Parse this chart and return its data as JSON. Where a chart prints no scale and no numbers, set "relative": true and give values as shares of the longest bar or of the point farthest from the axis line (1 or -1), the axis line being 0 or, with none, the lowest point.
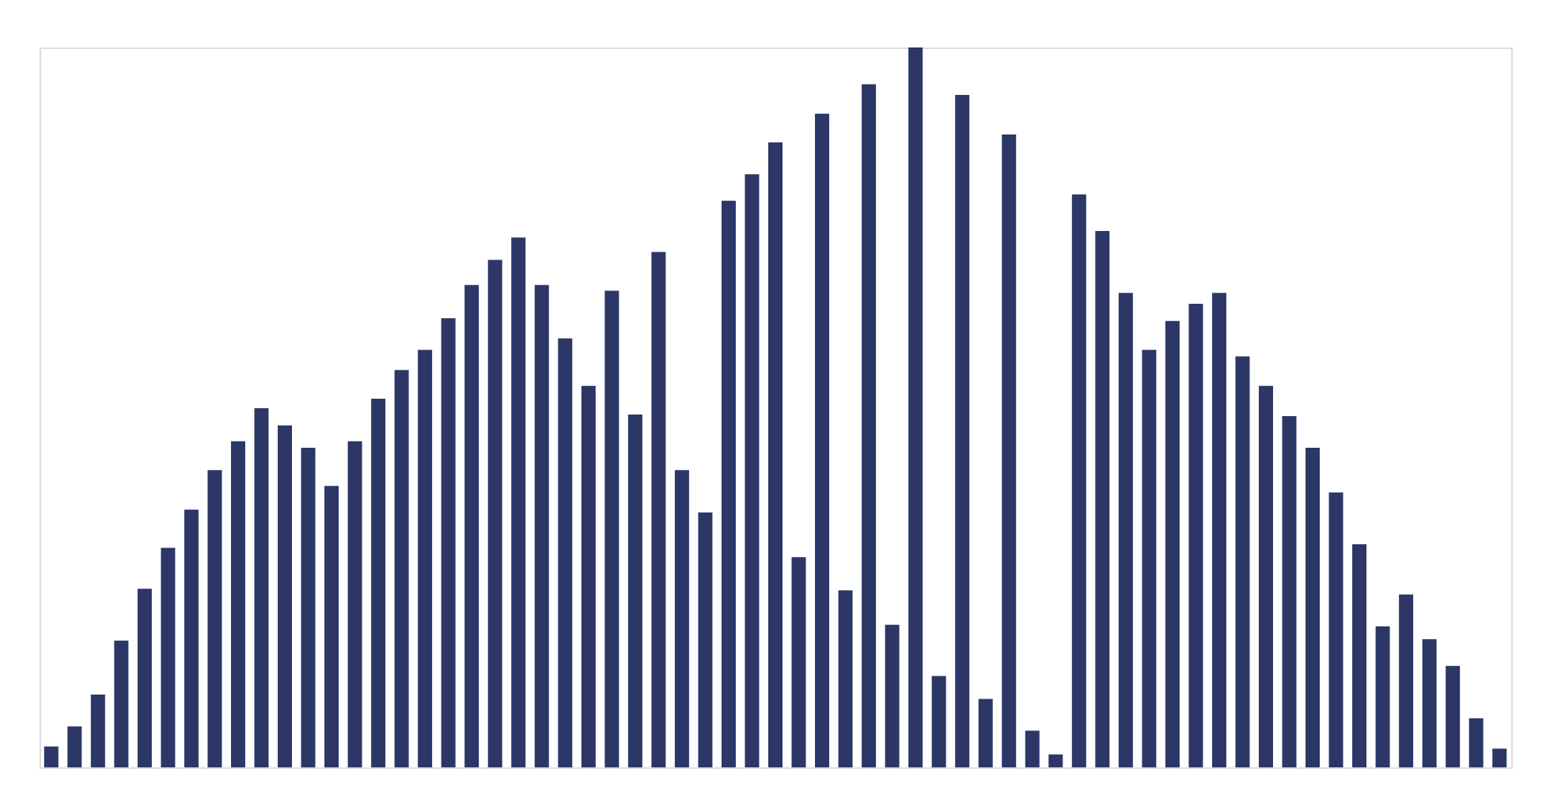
{
  "chart_data": {
    "type": "bar",
    "relative": true,
    "color": "#2c3767",
    "categories": [
      null,
      null,
      null,
      null,
      null,
      null,
      null,
      null,
      null,
      null,
      null,
      null,
      null,
      null,
      null,
      null,
      null,
      null,
      null,
      null,
      null,
      null,
      null,
      null,
      null,
      null,
      null,
      null,
      null,
      null,
      null,
      null,
      null,
      null,
      null,
      null,
      null,
      null,
      null,
      null,
      null,
      null,
      null,
      null,
      null,
      null,
      null,
      null,
      null,
      null,
      null,
      null,
      null,
      null,
      null,
      null,
      null,
      null,
      null,
      null,
      null,
      null,
      null
    ],
    "values": [
      0.029,
      0.057,
      0.101,
      0.176,
      0.248,
      0.305,
      0.358,
      0.413,
      0.453,
      0.499,
      0.475,
      0.444,
      0.391,
      0.453,
      0.512,
      0.552,
      0.58,
      0.624,
      0.67,
      0.705,
      0.736,
      0.67,
      0.596,
      0.53,
      0.662,
      0.49,
      0.716,
      0.413,
      0.354,
      0.787,
      0.824,
      0.868,
      0.292,
      0.908,
      0.246,
      0.949,
      0.198,
      1,
      0.127,
      0.934,
      0.095,
      0.879,
      0.051,
      0.018,
      0.796,
      0.745,
      0.659,
      0.58,
      0.62,
      0.644,
      0.659,
      0.571,
      0.53,
      0.488,
      0.444,
      0.382,
      0.31,
      0.196,
      0.24,
      0.178,
      0.141,
      0.068,
      0.026
    ]
  }
}
